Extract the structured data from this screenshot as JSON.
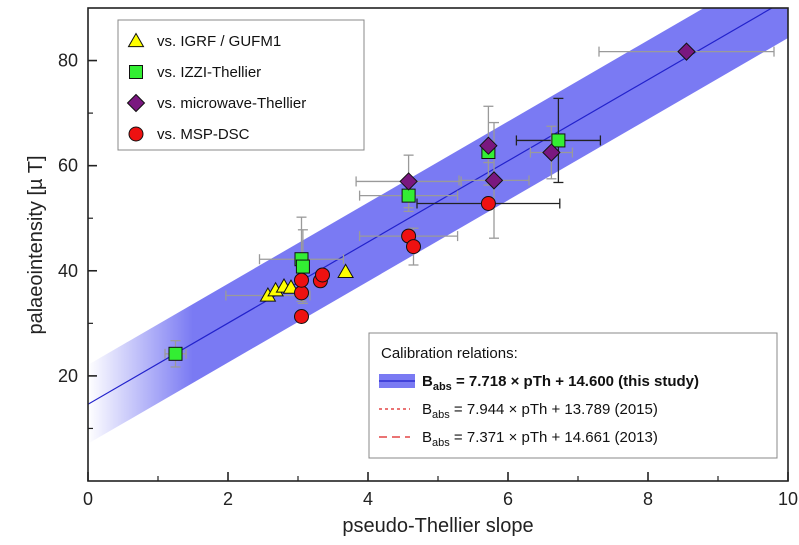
{
  "chart_data": {
    "type": "scatter",
    "xlabel": "pseudo-Thellier slope",
    "ylabel": "palaeointensity [µ T]",
    "xlim": [
      0,
      10
    ],
    "ylim": [
      0,
      90
    ],
    "xticks": [
      "0",
      "2",
      "4",
      "6",
      "8",
      "10"
    ],
    "yticks": [
      "20",
      "40",
      "60",
      "80"
    ],
    "xtick_values": [
      0,
      2,
      4,
      6,
      8,
      10
    ],
    "ytick_values": [
      20,
      40,
      60,
      80
    ],
    "grid": false,
    "legend_position": "top-left",
    "series": [
      {
        "name": "vs. IGRF / GUFM1",
        "marker": "triangle",
        "color": "#ffff00",
        "points": [
          {
            "x": 2.57,
            "y": 35.3,
            "xerr": 0.6,
            "yerr": 0
          },
          {
            "x": 2.68,
            "y": 36.3,
            "xerr": 0,
            "yerr": 0
          },
          {
            "x": 2.8,
            "y": 37.0,
            "xerr": 0,
            "yerr": 0
          },
          {
            "x": 2.9,
            "y": 36.8,
            "xerr": 0,
            "yerr": 0
          },
          {
            "x": 3.68,
            "y": 39.8,
            "xerr": 0,
            "yerr": 0
          }
        ]
      },
      {
        "name": "vs. IZZI-Thellier",
        "marker": "square",
        "color": "#33ee33",
        "points": [
          {
            "x": 1.25,
            "y": 24.2,
            "xerr": 0.15,
            "yerr": 2.5
          },
          {
            "x": 3.05,
            "y": 42.2,
            "xerr": 0.6,
            "yerr": 8
          },
          {
            "x": 3.07,
            "y": 40.8,
            "xerr": 0,
            "yerr": 7
          },
          {
            "x": 4.58,
            "y": 54.3,
            "xerr": 0.7,
            "yerr": 3
          },
          {
            "x": 5.72,
            "y": 62.6,
            "xerr": 0,
            "yerr": 2
          },
          {
            "x": 6.72,
            "y": 64.8,
            "xerr": 0.6,
            "yerr": 8
          }
        ]
      },
      {
        "name": "vs. microwave-Thellier",
        "marker": "diamond",
        "color": "#7a177f",
        "points": [
          {
            "x": 4.58,
            "y": 57.0,
            "xerr": 0.75,
            "yerr": 5
          },
          {
            "x": 5.72,
            "y": 63.8,
            "xerr": 0,
            "yerr": 7.5
          },
          {
            "x": 5.8,
            "y": 57.2,
            "xerr": 0.5,
            "yerr": 11
          },
          {
            "x": 6.62,
            "y": 62.5,
            "xerr": 0.3,
            "yerr": 5
          },
          {
            "x": 8.55,
            "y": 81.7,
            "xerr": 1.25,
            "yerr": 0
          }
        ]
      },
      {
        "name": "vs. MSP-DSC",
        "marker": "circle",
        "color": "#ee1111",
        "points": [
          {
            "x": 3.05,
            "y": 31.3,
            "xerr": 0,
            "yerr": 0
          },
          {
            "x": 3.05,
            "y": 35.8,
            "xerr": 0,
            "yerr": 0
          },
          {
            "x": 3.05,
            "y": 38.2,
            "xerr": 0,
            "yerr": 0
          },
          {
            "x": 3.32,
            "y": 38.1,
            "xerr": 0,
            "yerr": 0
          },
          {
            "x": 3.35,
            "y": 39.2,
            "xerr": 0,
            "yerr": 0
          },
          {
            "x": 4.58,
            "y": 46.6,
            "xerr": 0.7,
            "yerr": 0
          },
          {
            "x": 4.65,
            "y": 44.6,
            "xerr": 0,
            "yerr": 3.5
          },
          {
            "x": 5.72,
            "y": 52.8,
            "xerr": 1.02,
            "yerr": 0
          }
        ]
      }
    ],
    "calibration": {
      "title": "Calibration relations:",
      "lines": [
        {
          "label_main": "B",
          "label_sub": "abs",
          "label_rest": " = 7.718 × pTh + 14.600 (this study)",
          "slope": 7.718,
          "intercept": 14.6,
          "color": "#2222cc",
          "style": "solid",
          "bold": true
        },
        {
          "label_main": "B",
          "label_sub": "abs",
          "label_rest": " = 7.944 × pTh + 13.789 (2015)",
          "slope": 7.944,
          "intercept": 13.789,
          "color": "#dd2222",
          "style": "dotted",
          "bold": false
        },
        {
          "label_main": "B",
          "label_sub": "abs",
          "label_rest": " = 7.371 × pTh + 14.661 (2013)",
          "slope": 7.371,
          "intercept": 14.661,
          "color": "#dd2222",
          "style": "dashed",
          "bold": false
        }
      ],
      "band_halfwidth": 7.5,
      "band_color": "#6b6bf2"
    }
  }
}
